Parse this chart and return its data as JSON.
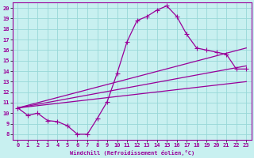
{
  "xlabel": "Windchill (Refroidissement éolien,°C)",
  "bg_color": "#c8f0f0",
  "grid_color": "#98d8d8",
  "line_color": "#990099",
  "markersize": 2.5,
  "linewidth": 0.9,
  "xlim": [
    -0.5,
    23.5
  ],
  "ylim": [
    7.5,
    20.5
  ],
  "xticks": [
    0,
    1,
    2,
    3,
    4,
    5,
    6,
    7,
    8,
    9,
    10,
    11,
    12,
    13,
    14,
    15,
    16,
    17,
    18,
    19,
    20,
    21,
    22,
    23
  ],
  "yticks": [
    8,
    9,
    10,
    11,
    12,
    13,
    14,
    15,
    16,
    17,
    18,
    19,
    20
  ],
  "main_x": [
    0,
    1,
    2,
    3,
    4,
    5,
    6,
    7,
    8,
    9,
    10,
    11,
    12,
    13,
    14,
    15,
    16,
    17,
    18,
    19,
    20,
    21,
    22,
    23
  ],
  "main_y": [
    10.5,
    9.8,
    10.0,
    9.3,
    9.2,
    8.8,
    8.0,
    8.0,
    9.5,
    11.1,
    13.8,
    16.8,
    18.8,
    19.2,
    19.8,
    20.2,
    19.2,
    17.5,
    16.2,
    16.0,
    15.8,
    15.6,
    14.2,
    14.2
  ],
  "straight_lines": [
    {
      "x0": 0,
      "y0": 10.5,
      "x1": 23,
      "y1": 16.2
    },
    {
      "x0": 0,
      "y0": 10.5,
      "x1": 23,
      "y1": 14.5
    },
    {
      "x0": 0,
      "y0": 10.5,
      "x1": 23,
      "y1": 13.0
    }
  ]
}
